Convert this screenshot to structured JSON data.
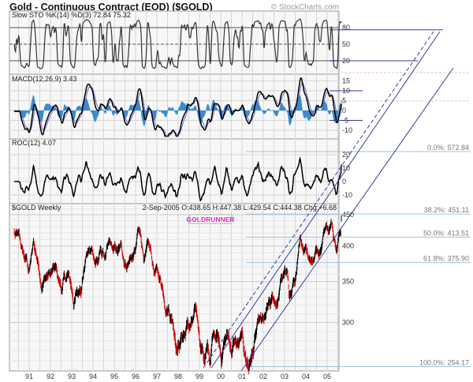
{
  "header": {
    "title": "Gold - Continuous Contract (EOD) ($GOLD)",
    "watermark": "© StockCharts.com"
  },
  "chart_data": [
    {
      "type": "line",
      "panel": "stochastic",
      "title": "Slow STO %K(14) %D(3) 72.84 75.32",
      "yticks": [
        "80",
        "50",
        "20"
      ],
      "ylim": [
        0,
        100
      ],
      "reference_lines": [
        80,
        50,
        20
      ]
    },
    {
      "type": "line",
      "panel": "macd",
      "title": "MACD(12,26,9) 3.43",
      "yticks": [
        "15",
        "10",
        "5",
        "0",
        "-5",
        "-10"
      ],
      "ylim": [
        -14,
        19
      ],
      "series": [
        {
          "name": "MACD"
        },
        {
          "name": "Signal"
        },
        {
          "name": "Histogram"
        }
      ]
    },
    {
      "type": "line",
      "panel": "roc",
      "title": "ROC(12) 4.07",
      "yticks": [
        "20",
        "10",
        "0",
        "-10"
      ],
      "ylim": [
        -17,
        26
      ]
    },
    {
      "type": "bar",
      "panel": "price",
      "title": "$GOLD Weekly",
      "quote": "2-Sep-2005 O:438.65 H:447.38 L:429.54 C:444.38 Chg:+6.68",
      "annotation": "GOLDRUNNER",
      "yticks": [
        "450",
        "400",
        "350",
        "300"
      ],
      "ylim": [
        250,
        470
      ],
      "xticks": [
        "91",
        "92",
        "93",
        "94",
        "95",
        "96",
        "97",
        "98",
        "99",
        "00",
        "01",
        "02",
        "03",
        "04",
        "05"
      ],
      "x_years": [
        1991,
        1992,
        1993,
        1994,
        1995,
        1996,
        1997,
        1998,
        1999,
        2000,
        2001,
        2002,
        2003,
        2004,
        2005
      ],
      "price_keypoints": [
        [
          1990.3,
          420
        ],
        [
          1990.7,
          380
        ],
        [
          1991.0,
          365
        ],
        [
          1991.2,
          395
        ],
        [
          1991.5,
          370
        ],
        [
          1991.9,
          360
        ],
        [
          1992.2,
          355
        ],
        [
          1992.5,
          340
        ],
        [
          1992.8,
          350
        ],
        [
          1993.1,
          330
        ],
        [
          1993.3,
          330
        ],
        [
          1993.5,
          370
        ],
        [
          1993.7,
          395
        ],
        [
          1994.0,
          385
        ],
        [
          1994.5,
          385
        ],
        [
          1995.0,
          380
        ],
        [
          1995.5,
          385
        ],
        [
          1996.0,
          390
        ],
        [
          1996.1,
          410
        ],
        [
          1996.5,
          385
        ],
        [
          1997.0,
          355
        ],
        [
          1997.5,
          340
        ],
        [
          1997.9,
          300
        ],
        [
          1998.1,
          290
        ],
        [
          1998.5,
          295
        ],
        [
          1999.0,
          288
        ],
        [
          1999.5,
          255
        ],
        [
          1999.8,
          300
        ],
        [
          2000.0,
          290
        ],
        [
          2000.5,
          280
        ],
        [
          2001.0,
          265
        ],
        [
          2001.3,
          260
        ],
        [
          2001.7,
          280
        ],
        [
          2002.0,
          280
        ],
        [
          2002.5,
          315
        ],
        [
          2003.0,
          360
        ],
        [
          2003.2,
          330
        ],
        [
          2003.6,
          360
        ],
        [
          2004.0,
          410
        ],
        [
          2004.3,
          395
        ],
        [
          2004.6,
          400
        ],
        [
          2004.9,
          440
        ],
        [
          2005.3,
          425
        ],
        [
          2005.68,
          444.38
        ]
      ],
      "fibonacci": [
        {
          "label": "0.0%: 572.84",
          "value": 572.84
        },
        {
          "label": "38.2%: 451.11",
          "value": 451.11
        },
        {
          "label": "50.0%: 413.51",
          "value": 413.51
        },
        {
          "label": "61.8%: 375.90",
          "value": 375.9
        },
        {
          "label": "100.0%: 254.17",
          "value": 254.17
        }
      ]
    }
  ],
  "colors": {
    "line_blue": "#3a3a9a",
    "fib_blue": "#9cc4e4",
    "hist_blue": "#3a8ccc",
    "up": "#000000",
    "down": "#cc0000",
    "annotation": "#e020c0"
  }
}
